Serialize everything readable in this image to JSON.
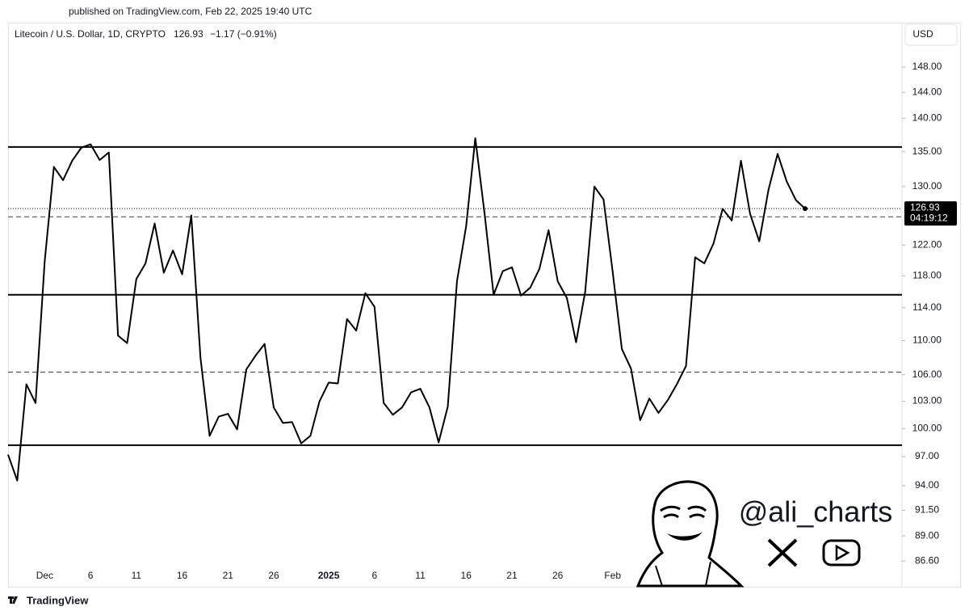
{
  "published": "published on TradingView.com, Feb 22, 2025 19:40 UTC",
  "chart_data": {
    "type": "line",
    "title": "Litecoin / U.S. Dollar, 1D, CRYPTO",
    "change": "−1.17 (−0.91%)",
    "currency": "USD",
    "countdown": "04:19:12",
    "categories": [
      null,
      null,
      null,
      null,
      "Dec",
      null,
      null,
      null,
      null,
      "6",
      null,
      null,
      null,
      null,
      "11",
      null,
      null,
      null,
      null,
      "16",
      null,
      null,
      null,
      null,
      "21",
      null,
      null,
      null,
      null,
      "26",
      null,
      null,
      null,
      null,
      null,
      "2025",
      null,
      null,
      null,
      null,
      "6",
      null,
      null,
      null,
      null,
      "11",
      null,
      null,
      null,
      null,
      "16",
      null,
      null,
      null,
      null,
      "21",
      null,
      null,
      null,
      null,
      "26",
      null,
      null,
      null,
      null,
      null,
      "Feb",
      null,
      null,
      null,
      null,
      null,
      null,
      null,
      null,
      null,
      null,
      null,
      null,
      null,
      null,
      null,
      null,
      null,
      null,
      null,
      null,
      null
    ],
    "values": [
      97.2,
      94.5,
      104.9,
      102.8,
      119.9,
      132.8,
      130.9,
      133.7,
      135.6,
      136.1,
      133.8,
      134.9,
      110.6,
      109.7,
      117.6,
      119.6,
      124.9,
      118.4,
      121.3,
      118.2,
      126.0,
      108.0,
      99.2,
      101.3,
      101.6,
      99.9,
      106.6,
      108.2,
      109.6,
      102.3,
      100.6,
      100.7,
      98.4,
      99.2,
      103.0,
      105.1,
      105.0,
      112.6,
      111.2,
      115.8,
      114.1,
      102.8,
      101.5,
      102.3,
      104.0,
      104.4,
      102.3,
      98.5,
      102.4,
      117.3,
      124.5,
      137.0,
      126.4,
      115.6,
      118.6,
      119.1,
      115.5,
      116.5,
      118.9,
      124.0,
      117.3,
      115.2,
      109.8,
      116.0,
      130.0,
      128.2,
      118.5,
      109.0,
      106.7,
      100.9,
      103.3,
      101.7,
      103.1,
      104.9,
      107.0,
      120.4,
      119.6,
      122.2,
      126.9,
      125.3,
      133.7,
      126.2,
      122.5,
      129.5,
      134.7,
      130.7,
      128.1,
      126.93
    ],
    "color": "#000000",
    "log_scale": true,
    "ylim": [
      84.3,
      155.3
    ],
    "yticks": [
      {
        "value": 86.6,
        "label": "86.60"
      },
      {
        "value": 89,
        "label": "89.00"
      },
      {
        "value": 91.5,
        "label": "91.50"
      },
      {
        "value": 94,
        "label": "94.00"
      },
      {
        "value": 97,
        "label": "97.00"
      },
      {
        "value": 100,
        "label": "100.00"
      },
      {
        "value": 103,
        "label": "103.00"
      },
      {
        "value": 106,
        "label": "106.00"
      },
      {
        "value": 110,
        "label": "110.00"
      },
      {
        "value": 114,
        "label": "114.00"
      },
      {
        "value": 118,
        "label": "118.00"
      },
      {
        "value": 122,
        "label": "122.00"
      },
      {
        "value": 130,
        "label": "130.00"
      },
      {
        "value": 135,
        "label": "135.00"
      },
      {
        "value": 140,
        "label": "140.00"
      },
      {
        "value": 144,
        "label": "144.00"
      },
      {
        "value": 148,
        "label": "148.00"
      }
    ],
    "levels": [
      {
        "value": 135.7,
        "style": "solid"
      },
      {
        "value": 125.8,
        "style": "dashed"
      },
      {
        "value": 115.6,
        "style": "solid"
      },
      {
        "value": 106.3,
        "style": "dashed"
      },
      {
        "value": 98.2,
        "style": "solid"
      }
    ]
  },
  "watermark": {
    "handle": "@ali_charts"
  },
  "footer": {
    "brand": "TradingView"
  }
}
